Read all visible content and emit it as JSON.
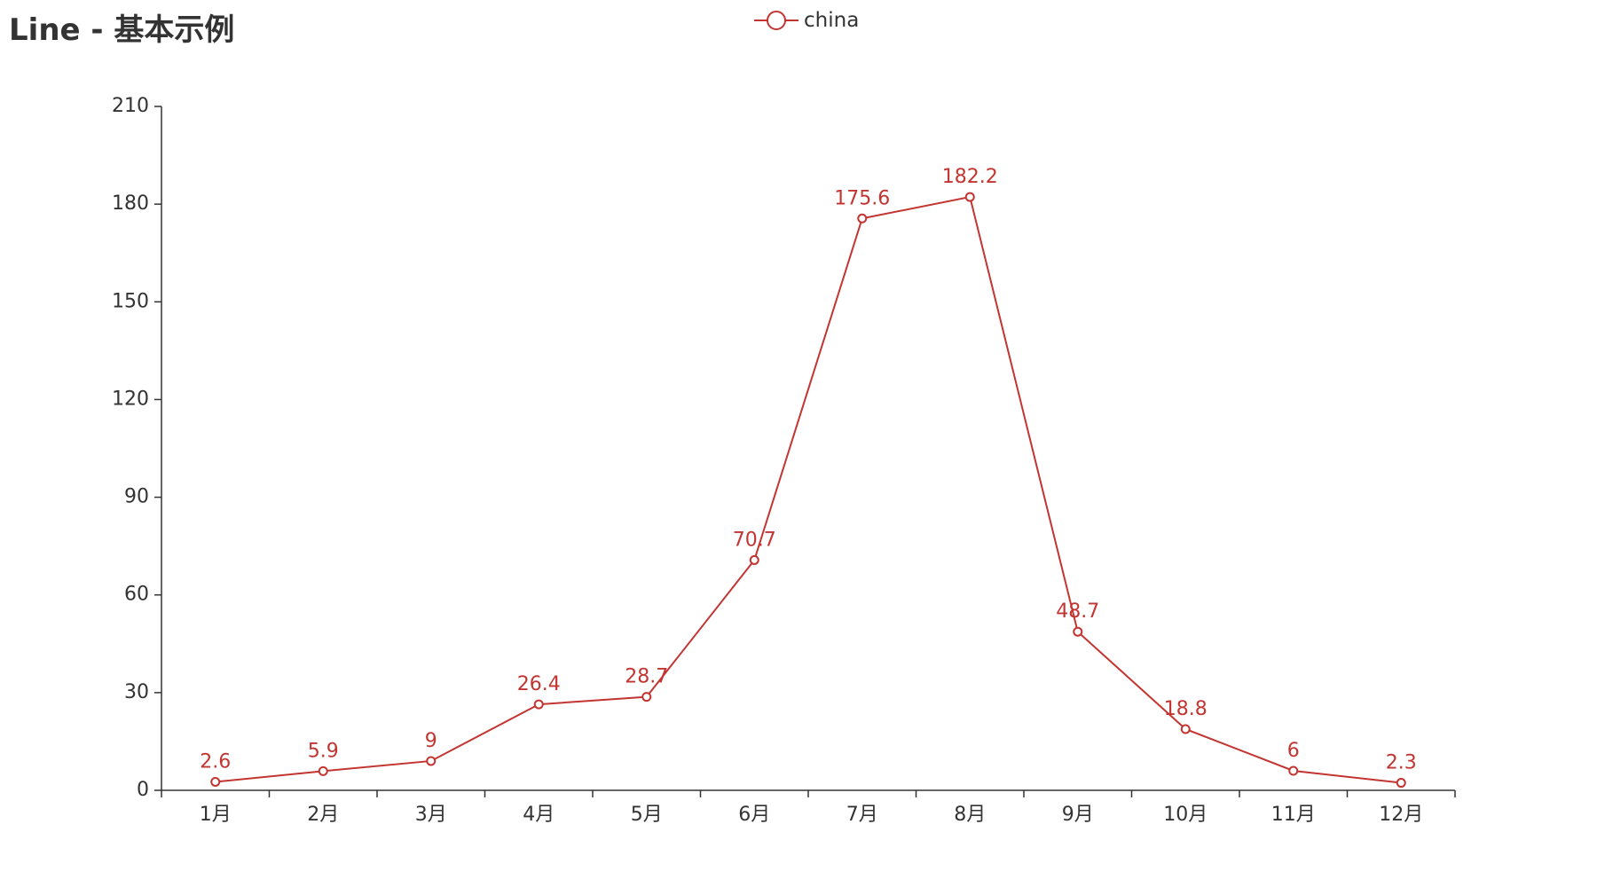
{
  "title": "Line - 基本示例",
  "legend": {
    "label": "china",
    "placement": "top-center"
  },
  "colors": {
    "series": "#c23531",
    "axis": "#333333",
    "text": "#333333"
  },
  "chart_data": {
    "type": "line",
    "title": "Line - 基本示例",
    "xlabel": "",
    "ylabel": "",
    "categories": [
      "1月",
      "2月",
      "3月",
      "4月",
      "5月",
      "6月",
      "7月",
      "8月",
      "9月",
      "10月",
      "11月",
      "12月"
    ],
    "series": [
      {
        "name": "china",
        "values": [
          2.6,
          5.9,
          9,
          26.4,
          28.7,
          70.7,
          175.6,
          182.2,
          48.7,
          18.8,
          6,
          2.3
        ],
        "labels": [
          "2.6",
          "5.9",
          "9",
          "26.4",
          "28.7",
          "70.7",
          "175.6",
          "182.2",
          "48.7",
          "18.8",
          "6",
          "2.3"
        ]
      }
    ],
    "ylim": [
      0,
      210
    ],
    "yticks": [
      0,
      30,
      60,
      90,
      120,
      150,
      180,
      210
    ],
    "grid": false,
    "legend_placement": "top-center",
    "show_symbols": true,
    "show_data_labels": true
  }
}
